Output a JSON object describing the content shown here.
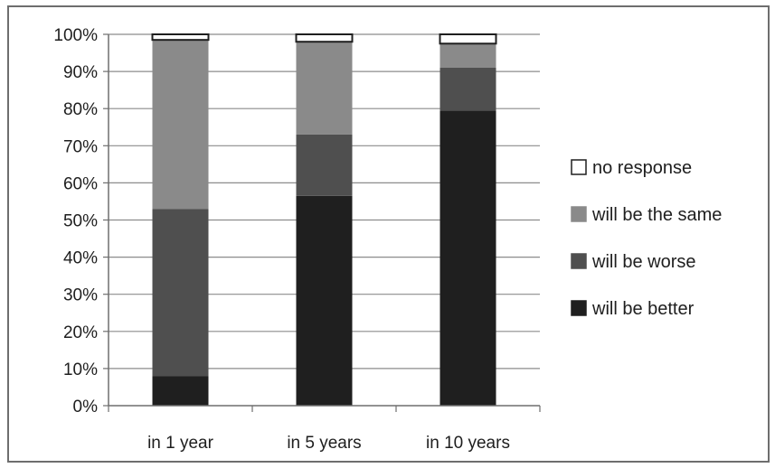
{
  "chart_data": {
    "type": "bar",
    "stacked": true,
    "categories": [
      "in 1 year",
      "in 5 years",
      "in 10 years"
    ],
    "series": [
      {
        "name": "will be better",
        "color": "#1f1f1f",
        "values": [
          8,
          56.5,
          79.5
        ]
      },
      {
        "name": "will be worse",
        "color": "#4f4f4f",
        "values": [
          45,
          16.5,
          11.5
        ]
      },
      {
        "name": "will be the same",
        "color": "#8a8a8a",
        "values": [
          45.5,
          25,
          6.5
        ]
      },
      {
        "name": "no response",
        "color": "#ffffff",
        "values": [
          1.5,
          2,
          2.5
        ]
      }
    ],
    "ylim": [
      0,
      100
    ],
    "yticks": [
      "0%",
      "10%",
      "20%",
      "30%",
      "40%",
      "50%",
      "60%",
      "70%",
      "80%",
      "90%",
      "100%"
    ],
    "grid": true,
    "legend_position": "right",
    "legend_order": [
      "no response",
      "will be the same",
      "will be worse",
      "will be better"
    ]
  }
}
